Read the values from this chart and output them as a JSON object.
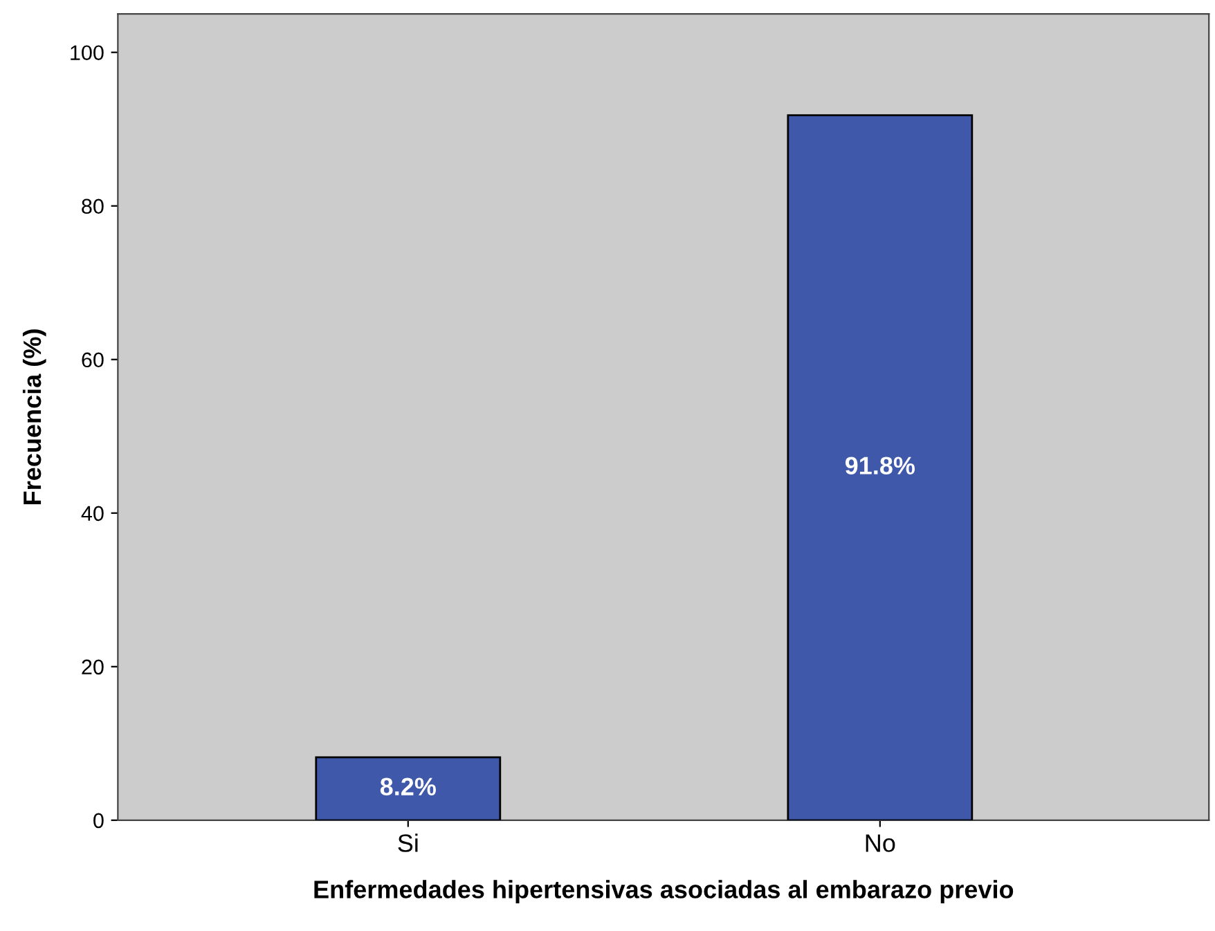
{
  "chart_data": {
    "type": "bar",
    "xlabel": "Enfermedades hipertensivas asociadas al embarazo previo",
    "ylabel": "Frecuencia (%)",
    "categories": [
      "Si",
      "No"
    ],
    "values": [
      8.2,
      91.8
    ],
    "color": "#3f58aa",
    "value_labels": [
      "8.2%",
      "91.8%"
    ],
    "ylim": [
      0,
      105
    ],
    "yticks": [
      0,
      20,
      40,
      60,
      80,
      100
    ],
    "grid": false,
    "legend": false
  }
}
